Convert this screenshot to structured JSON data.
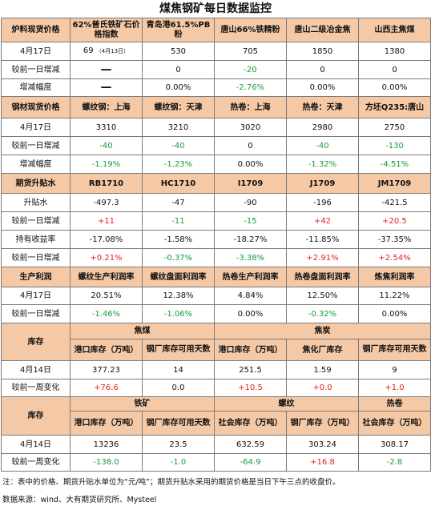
{
  "title": "煤焦钢矿每日数据监控",
  "s1": {
    "headers": [
      "炉料现货价格",
      "62%普氏铁矿石价格指数",
      "青岛港61.5%PB粉",
      "唐山66%铁精粉",
      "唐山二级冶金焦",
      "山西主焦煤"
    ],
    "r1": [
      "4月17日",
      "69",
      "（4月13日）",
      "530",
      "705",
      "1850",
      "1380"
    ],
    "r2": [
      "较前一日增减",
      "—",
      "0",
      "-20",
      "0",
      "0"
    ],
    "r3": [
      "增减幅度",
      "—",
      "0.00%",
      "-2.76%",
      "0.00%",
      "0.00%"
    ]
  },
  "s2": {
    "headers": [
      "钢材现货价格",
      "螺纹钢：上海",
      "螺纹钢：天津",
      "热卷：上海",
      "热卷：天津",
      "方坯Q235:唐山"
    ],
    "r1": [
      "4月17日",
      "3310",
      "3210",
      "3020",
      "2980",
      "2750"
    ],
    "r2": [
      "较前一日增减",
      "-40",
      "-40",
      "0",
      "-40",
      "-130"
    ],
    "r3": [
      "增减幅度",
      "-1.19%",
      "-1.23%",
      "0.00%",
      "-1.32%",
      "-4.51%"
    ]
  },
  "s3": {
    "headers": [
      "期货升贴水",
      "RB1710",
      "HC1710",
      "I1709",
      "J1709",
      "JM1709"
    ],
    "r1": [
      "升贴水",
      "-497.3",
      "-47",
      "-90",
      "-196",
      "-421.5"
    ],
    "r2": [
      "较前一日增减",
      "+11",
      "-11",
      "-15",
      "+42",
      "+20.5"
    ],
    "r3": [
      "持有收益率",
      "-17.08%",
      "-1.58%",
      "-18.27%",
      "-11.85%",
      "-37.35%"
    ],
    "r4": [
      "较前一日增减",
      "+0.21%",
      "-0.37%",
      "-3.38%",
      "+2.91%",
      "+2.54%"
    ]
  },
  "s4": {
    "headers": [
      "生产利润",
      "螺纹生产利润率",
      "螺纹盘面利润率",
      "热卷生产利润率",
      "热卷盘面利润率",
      "炼焦利润率"
    ],
    "r1": [
      "4月17日",
      "20.51%",
      "12.38%",
      "4.84%",
      "12.50%",
      "11.22%"
    ],
    "r2": [
      "较前一日增减",
      "-1.46%",
      "-1.06%",
      "0.00%",
      "-0.32%",
      "0.00%"
    ]
  },
  "s5": {
    "label": "库存",
    "group1": "焦煤",
    "group2": "焦炭",
    "sub": [
      "港口库存（万吨）",
      "钢厂库存可用天数",
      "港口库存（万吨）",
      "焦化厂库存",
      "钢厂库存可用天数"
    ],
    "r1": [
      "4月14日",
      "377.23",
      "14",
      "251.5",
      "1.59",
      "9"
    ],
    "r2": [
      "较前一周变化",
      "+76.6",
      "0.0",
      "+10.5",
      "+0.0",
      "+1.0"
    ]
  },
  "s6": {
    "label": "库存",
    "group1": "铁矿",
    "group2": "螺纹",
    "group3": "热卷",
    "sub": [
      "港口库存（万吨）",
      "钢厂库存可用天数",
      "社会库存（万吨）",
      "钢厂库存（万吨）",
      "社会库存（万吨）"
    ],
    "r1": [
      "4月14日",
      "13236",
      "23.5",
      "632.59",
      "303.24",
      "308.17"
    ],
    "r2": [
      "较前一周变化",
      "-138.0",
      "-1.0",
      "-64.9",
      "+16.8",
      "-2.8"
    ]
  },
  "footnote": "注：表中的价格、期货升贴水单位为“元/吨”；期货升贴水采用的期货价格是当日下午三点的收盘价。",
  "source": "数据来源：wind、大有期货研究所、Mysteel",
  "colors": {
    "header_bg": "#f5c9a6",
    "green": "#1a9a3c",
    "red": "#e0231e"
  }
}
